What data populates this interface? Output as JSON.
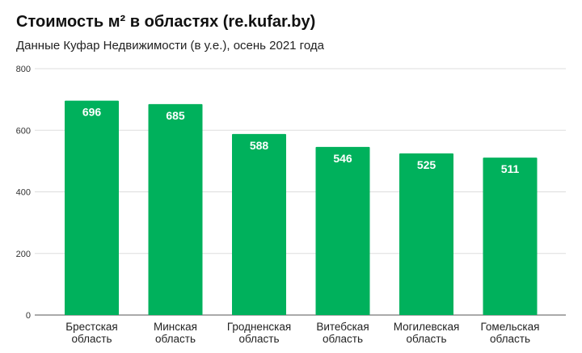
{
  "chart_data": {
    "type": "bar",
    "title": "Стоимость м² в областях (re.kufar.by)",
    "subtitle": "Данные Куфар Недвижимости (в у.е.), осень 2021 года",
    "categories": [
      [
        "Брестская",
        "область"
      ],
      [
        "Минская",
        "область"
      ],
      [
        "Гродненская",
        "область"
      ],
      [
        "Витебская",
        "область"
      ],
      [
        "Могилевская",
        "область"
      ],
      [
        "Гомельская",
        "область"
      ]
    ],
    "values": [
      696,
      685,
      588,
      546,
      525,
      511
    ],
    "data_labels": [
      "696",
      "685",
      "588",
      "546",
      "525",
      "511"
    ],
    "yticks": [
      "0",
      "200",
      "400",
      "600",
      "800"
    ],
    "ylim": [
      0,
      800
    ],
    "xlabel": "",
    "ylabel": "",
    "grid": true,
    "legend": "none",
    "bar_color": "#00b15c"
  }
}
